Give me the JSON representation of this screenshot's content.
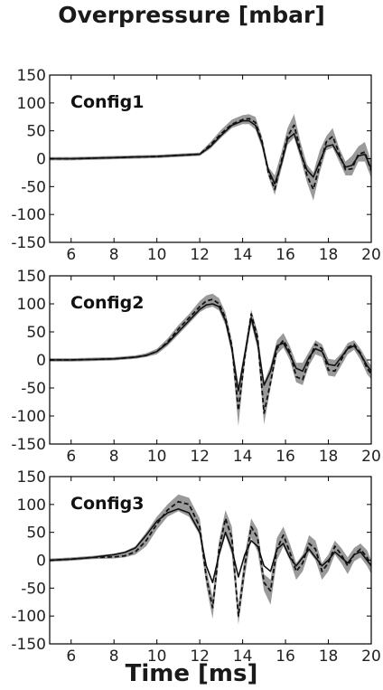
{
  "figure": {
    "title": "Overpressure [mbar]",
    "xlabel": "Time [ms]"
  },
  "chart_data": [
    {
      "type": "line",
      "panel_label": "Config1",
      "xlim": [
        5,
        20
      ],
      "ylim": [
        -150,
        150
      ],
      "xticks": [
        6,
        8,
        10,
        12,
        14,
        16,
        18,
        20
      ],
      "yticks": [
        150,
        100,
        50,
        0,
        -50,
        -100,
        -150
      ],
      "x": [
        5,
        6,
        7,
        8,
        9,
        10,
        11,
        12,
        12.5,
        13,
        13.5,
        14,
        14.3,
        14.6,
        14.9,
        15.2,
        15.5,
        15.8,
        16.1,
        16.4,
        16.7,
        17,
        17.3,
        17.6,
        17.9,
        18.2,
        18.5,
        18.8,
        19.1,
        19.4,
        19.7,
        20
      ],
      "series": [
        {
          "style": "solid",
          "values": [
            0,
            0,
            1,
            2,
            3,
            4,
            6,
            8,
            22,
            42,
            60,
            68,
            68,
            60,
            28,
            -20,
            -45,
            -10,
            35,
            45,
            10,
            -20,
            -33,
            -5,
            22,
            25,
            5,
            -15,
            -12,
            5,
            8,
            -18
          ]
        },
        {
          "style": "dashed",
          "values": [
            0,
            0,
            1,
            2,
            3,
            4,
            6,
            8,
            25,
            45,
            62,
            70,
            72,
            65,
            32,
            -25,
            -55,
            -5,
            40,
            60,
            15,
            -30,
            -55,
            -12,
            30,
            40,
            10,
            -20,
            -18,
            8,
            12,
            -22
          ]
        }
      ],
      "band": {
        "upper": [
          3,
          3,
          4,
          5,
          6,
          7,
          9,
          11,
          30,
          52,
          70,
          78,
          80,
          75,
          40,
          -15,
          -30,
          10,
          55,
          80,
          30,
          -10,
          -25,
          15,
          40,
          55,
          20,
          -5,
          5,
          22,
          30,
          -5
        ],
        "lower": [
          -3,
          -3,
          -2,
          -1,
          0,
          1,
          3,
          5,
          18,
          38,
          55,
          62,
          62,
          52,
          20,
          -32,
          -65,
          -20,
          25,
          38,
          0,
          -42,
          -75,
          -25,
          15,
          20,
          -5,
          -30,
          -30,
          -5,
          -5,
          -35
        ]
      }
    },
    {
      "type": "line",
      "panel_label": "Config2",
      "xlim": [
        5,
        20
      ],
      "ylim": [
        -150,
        150
      ],
      "xticks": [
        6,
        8,
        10,
        12,
        14,
        16,
        18,
        20
      ],
      "yticks": [
        150,
        100,
        50,
        0,
        -50,
        -100,
        -150
      ],
      "x": [
        5,
        6,
        7,
        8,
        9,
        9.5,
        10,
        10.5,
        11,
        11.5,
        12,
        12.3,
        12.6,
        12.9,
        13.2,
        13.5,
        13.8,
        14.1,
        14.4,
        14.7,
        15,
        15.3,
        15.6,
        15.9,
        16.2,
        16.5,
        16.8,
        17.1,
        17.4,
        17.7,
        18,
        18.3,
        18.6,
        18.9,
        19.2,
        19.5,
        19.8,
        20
      ],
      "series": [
        {
          "style": "solid",
          "values": [
            0,
            0,
            1,
            2,
            5,
            8,
            15,
            30,
            50,
            70,
            90,
            98,
            100,
            95,
            70,
            20,
            -55,
            10,
            75,
            30,
            -45,
            -20,
            25,
            30,
            10,
            -15,
            -20,
            5,
            20,
            15,
            -8,
            -10,
            5,
            20,
            25,
            10,
            -10,
            -20
          ]
        },
        {
          "style": "dashed",
          "values": [
            0,
            0,
            1,
            2,
            5,
            8,
            15,
            32,
            55,
            75,
            95,
            105,
            108,
            100,
            75,
            25,
            -90,
            5,
            82,
            40,
            -95,
            -40,
            20,
            35,
            15,
            -30,
            -35,
            0,
            28,
            20,
            -18,
            -20,
            0,
            22,
            28,
            12,
            -15,
            -25
          ]
        }
      ],
      "band": {
        "upper": [
          3,
          3,
          4,
          5,
          8,
          12,
          20,
          38,
          62,
          82,
          105,
          115,
          118,
          110,
          85,
          35,
          -45,
          20,
          90,
          50,
          -40,
          -10,
          35,
          48,
          25,
          -5,
          -5,
          15,
          35,
          28,
          2,
          0,
          12,
          30,
          35,
          20,
          0,
          -10
        ],
        "lower": [
          -3,
          -3,
          -2,
          -1,
          2,
          5,
          10,
          25,
          45,
          65,
          85,
          92,
          95,
          88,
          62,
          10,
          -118,
          -5,
          65,
          20,
          -115,
          -50,
          10,
          22,
          0,
          -40,
          -45,
          -10,
          10,
          5,
          -28,
          -30,
          -10,
          10,
          18,
          0,
          -25,
          -35
        ]
      }
    },
    {
      "type": "line",
      "panel_label": "Config3",
      "xlim": [
        5,
        20
      ],
      "ylim": [
        -150,
        150
      ],
      "xticks": [
        6,
        8,
        10,
        12,
        14,
        16,
        18,
        20
      ],
      "yticks": [
        150,
        100,
        50,
        0,
        -50,
        -100,
        -150
      ],
      "x": [
        5,
        6,
        7,
        8,
        8.5,
        9,
        9.5,
        10,
        10.5,
        11,
        11.5,
        12,
        12.3,
        12.6,
        12.9,
        13.2,
        13.5,
        13.8,
        14.1,
        14.4,
        14.7,
        15,
        15.3,
        15.6,
        15.9,
        16.2,
        16.5,
        16.8,
        17.1,
        17.4,
        17.7,
        18,
        18.3,
        18.6,
        18.9,
        19.2,
        19.5,
        19.8,
        20
      ],
      "series": [
        {
          "style": "solid",
          "values": [
            0,
            2,
            5,
            10,
            14,
            22,
            45,
            70,
            85,
            92,
            85,
            50,
            -10,
            -40,
            10,
            50,
            20,
            -30,
            10,
            35,
            25,
            -10,
            -20,
            20,
            30,
            5,
            -10,
            5,
            20,
            5,
            -10,
            0,
            15,
            5,
            -5,
            10,
            15,
            0,
            -10
          ]
        },
        {
          "style": "dashed",
          "values": [
            0,
            2,
            5,
            6,
            8,
            15,
            35,
            65,
            90,
            105,
            100,
            60,
            -30,
            -85,
            20,
            75,
            40,
            -100,
            -10,
            60,
            40,
            -40,
            -55,
            20,
            45,
            15,
            -20,
            -5,
            30,
            20,
            -20,
            -5,
            25,
            10,
            -10,
            10,
            20,
            5,
            -10
          ]
        }
      ],
      "band": {
        "upper": [
          3,
          5,
          8,
          12,
          16,
          25,
          50,
          78,
          100,
          118,
          112,
          75,
          -15,
          -65,
          35,
          90,
          60,
          -80,
          10,
          75,
          55,
          -25,
          -35,
          40,
          60,
          30,
          -5,
          10,
          45,
          35,
          -5,
          10,
          35,
          22,
          5,
          22,
          30,
          18,
          0
        ],
        "lower": [
          -3,
          -1,
          2,
          3,
          5,
          10,
          25,
          55,
          78,
          88,
          78,
          45,
          -45,
          -105,
          5,
          45,
          10,
          -115,
          -30,
          40,
          15,
          -55,
          -80,
          0,
          25,
          0,
          -35,
          -20,
          15,
          0,
          -35,
          -20,
          10,
          -5,
          -25,
          -2,
          5,
          -10,
          -25
        ]
      }
    }
  ]
}
